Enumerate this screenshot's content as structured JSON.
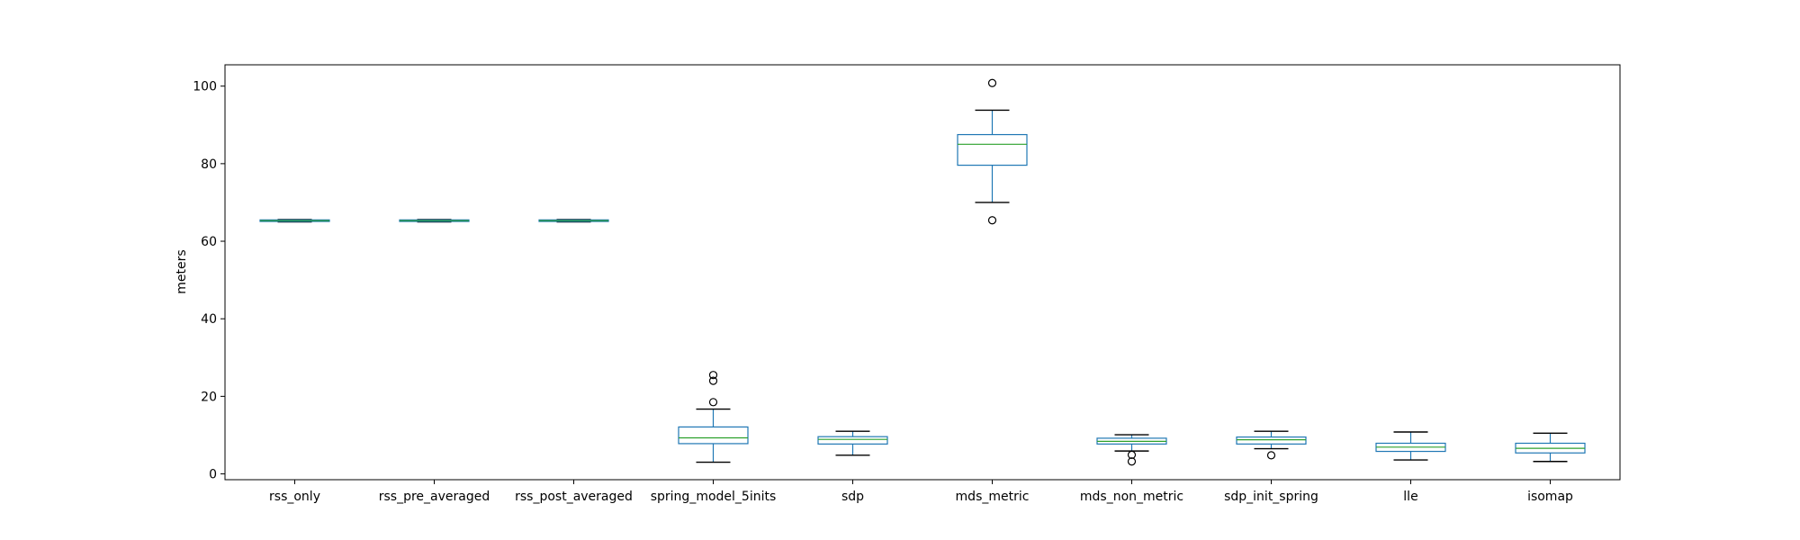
{
  "chart_data": {
    "type": "box",
    "title": "",
    "xlabel": "",
    "ylabel": "meters",
    "ylim": [
      -1.5,
      105.5
    ],
    "yticks": [
      0,
      20,
      40,
      60,
      80,
      100
    ],
    "grid": false,
    "legend": "none",
    "colors": {
      "box": "#1f77b4",
      "median": "#2ca02c",
      "whisker": "#000000",
      "outlier": "#000000"
    },
    "categories": [
      "rss_only",
      "rss_pre_averaged",
      "rss_post_averaged",
      "spring_model_5inits",
      "sdp",
      "mds_metric",
      "mds_non_metric",
      "sdp_init_spring",
      "lle",
      "isomap"
    ],
    "boxes": [
      {
        "min": 65.0,
        "q1": 65.1,
        "median": 65.3,
        "q3": 65.5,
        "max": 65.6,
        "outliers": []
      },
      {
        "min": 65.0,
        "q1": 65.1,
        "median": 65.3,
        "q3": 65.5,
        "max": 65.6,
        "outliers": []
      },
      {
        "min": 65.0,
        "q1": 65.1,
        "median": 65.3,
        "q3": 65.5,
        "max": 65.6,
        "outliers": []
      },
      {
        "min": 3.0,
        "q1": 7.8,
        "median": 9.3,
        "q3": 12.1,
        "max": 16.7,
        "outliers": [
          18.5,
          24.0,
          25.5
        ]
      },
      {
        "min": 4.8,
        "q1": 7.7,
        "median": 8.9,
        "q3": 9.6,
        "max": 11.0,
        "outliers": []
      },
      {
        "min": 70.0,
        "q1": 79.6,
        "median": 85.0,
        "q3": 87.5,
        "max": 93.8,
        "outliers": [
          100.8,
          65.4
        ]
      },
      {
        "min": 5.9,
        "q1": 7.7,
        "median": 8.4,
        "q3": 9.2,
        "max": 10.1,
        "outliers": [
          4.9,
          3.2
        ]
      },
      {
        "min": 6.5,
        "q1": 7.7,
        "median": 8.8,
        "q3": 9.5,
        "max": 11.0,
        "outliers": [
          4.8
        ]
      },
      {
        "min": 3.6,
        "q1": 5.8,
        "median": 6.9,
        "q3": 7.9,
        "max": 10.8,
        "outliers": []
      },
      {
        "min": 3.2,
        "q1": 5.4,
        "median": 6.6,
        "q3": 7.9,
        "max": 10.5,
        "outliers": []
      }
    ]
  }
}
